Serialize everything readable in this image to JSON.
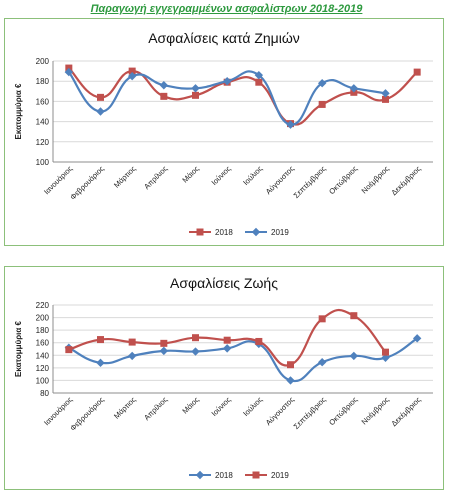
{
  "page_title": "Παραγωγή εγγεγραμμένων ασφαλίστρων 2018-2019",
  "chart_data": [
    {
      "type": "line",
      "title": "Ασφαλίσεις κατά Ζημιών",
      "ylabel": "Εκατομμύρια  €",
      "xlabel": "",
      "ylim": [
        100,
        200
      ],
      "yticks": [
        100,
        120,
        140,
        160,
        180,
        200
      ],
      "grid": true,
      "legend_placement": "bottom",
      "categories": [
        "Ιανουάριος",
        "Φεβρουάριος",
        "Μάρτιος",
        "Απρίλιος",
        "Μάιος",
        "Ιούνιος",
        "Ιούλιος",
        "Αύγουστος",
        "Σεπτέμβριος",
        "Οκτώβριος",
        "Νοέμβριος",
        "Δεκέμβριος"
      ],
      "series": [
        {
          "name": "2018",
          "color": "#c0504d",
          "marker": "square",
          "values": [
            193,
            164,
            190,
            165,
            166,
            179,
            179,
            138,
            157,
            169,
            162,
            189
          ]
        },
        {
          "name": "2019",
          "color": "#4f81bd",
          "marker": "diamond",
          "values": [
            189,
            150,
            185,
            176,
            173,
            180,
            186,
            137,
            178,
            173,
            168,
            null
          ]
        }
      ]
    },
    {
      "type": "line",
      "title": "Ασφαλίσεις Ζωής",
      "ylabel": "Εκατομμύρια  €",
      "xlabel": "",
      "ylim": [
        80,
        220
      ],
      "yticks": [
        80,
        100,
        120,
        140,
        160,
        180,
        200,
        220
      ],
      "grid": true,
      "legend_placement": "bottom",
      "categories": [
        "Ιανουάριος",
        "Φεβρουάριος",
        "Μάρτιος",
        "Απρίλιος",
        "Μάιος",
        "Ιούνιος",
        "Ιούλιος",
        "Αύγουστος",
        "Σεπτέμβριος",
        "Οκτώβριος",
        "Νοέμβριος",
        "Δεκέμβριος"
      ],
      "series": [
        {
          "name": "2018",
          "color": "#4f81bd",
          "marker": "diamond",
          "values": [
            152,
            128,
            139,
            147,
            146,
            151,
            158,
            100,
            129,
            139,
            136,
            167
          ]
        },
        {
          "name": "2019",
          "color": "#c0504d",
          "marker": "square",
          "values": [
            149,
            165,
            161,
            159,
            168,
            164,
            162,
            125,
            198,
            203,
            145,
            null
          ]
        }
      ]
    }
  ]
}
